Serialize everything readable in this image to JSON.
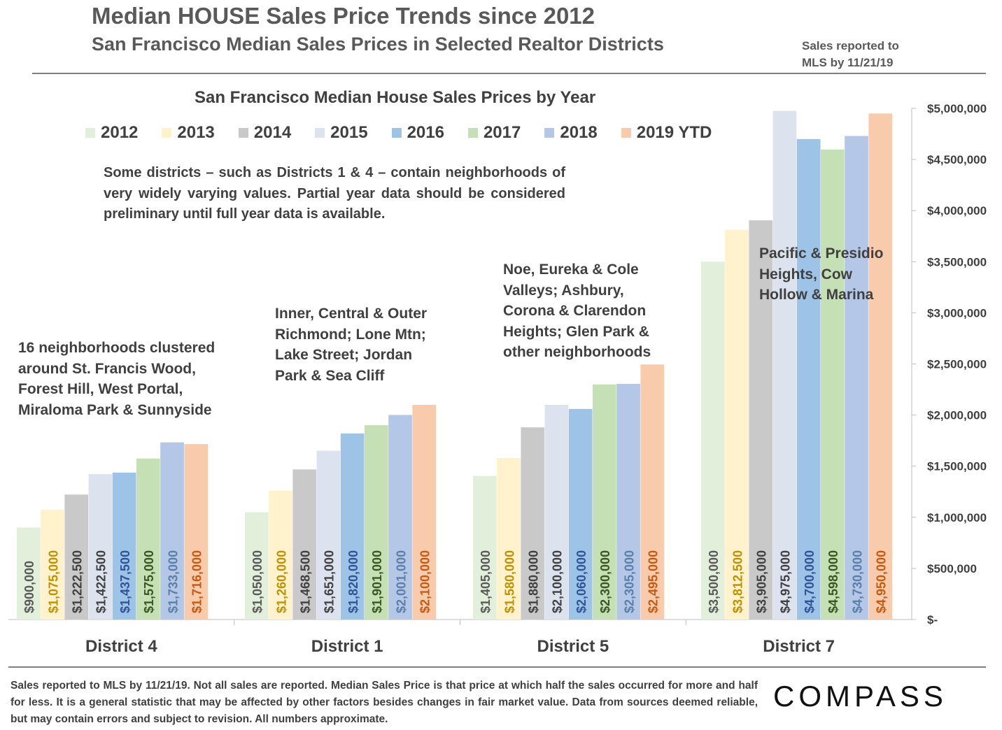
{
  "header": {
    "title": "Median HOUSE Sales Price Trends since 2012",
    "subtitle": "San Francisco Median Sales Prices in Selected Realtor Districts",
    "reported_line1": "Sales reported to",
    "reported_line2": "MLS by 11/21/19"
  },
  "note": "Some districts – such as Districts 1 & 4 – contain neighborhoods of very widely varying values. Partial year data should be considered preliminary until full year data is available.",
  "annotations": {
    "district4": "16 neighborhoods clustered\naround St. Francis Wood,\nForest Hill, West Portal,\nMiraloma Park & Sunnyside",
    "district1": "Inner, Central & Outer\nRichmond; Lone Mtn;\nLake Street; Jordan\nPark & Sea Cliff",
    "district5": "Noe, Eureka & Cole\nValleys; Ashbury,\nCorona & Clarendon\nHeights; Glen Park &\nother neighborhoods",
    "district7": "Pacific & Presidio\nHeights, Cow\nHollow & Marina"
  },
  "footnote": "Sales reported to MLS by 11/21/19. Not all sales are reported. Median Sales Price is that price at which half the sales occurred for more and half for less. It is a general statistic that may be affected by other factors besides changes in fair market value. Data from sources deemed reliable, but may contain errors and subject to revision.  All numbers approximate.",
  "logo": "COMPASS",
  "chart_data": {
    "type": "bar",
    "title": "San Francisco Median House Sales Prices by Year",
    "categories": [
      "District 4",
      "District 1",
      "District 5",
      "District 7"
    ],
    "ylim": [
      0,
      5000000
    ],
    "yticks": [
      0,
      500000,
      1000000,
      1500000,
      2000000,
      2500000,
      3000000,
      3500000,
      4000000,
      4500000,
      5000000
    ],
    "ytick_labels": [
      "$-",
      "$500,000",
      "$1,000,000",
      "$1,500,000",
      "$2,000,000",
      "$2,500,000",
      "$3,000,000",
      "$3,500,000",
      "$4,000,000",
      "$4,500,000",
      "$5,000,000"
    ],
    "legend_position": "top",
    "series": [
      {
        "name": "2012",
        "color": "#e2efda",
        "label_color": "#595959",
        "values": [
          900000,
          1050000,
          1405000,
          3500000
        ],
        "labels": [
          "$900,000",
          "$1,050,000",
          "$1,405,000",
          "$3,500,000"
        ]
      },
      {
        "name": "2013",
        "color": "#fff2cc",
        "label_color": "#bf9000",
        "values": [
          1075000,
          1260000,
          1580000,
          3812500
        ],
        "labels": [
          "$1,075,000",
          "$1,260,000",
          "$1,580,000",
          "$3,812,500"
        ]
      },
      {
        "name": "2014",
        "color": "#c9c9c9",
        "label_color": "#404040",
        "values": [
          1222500,
          1468500,
          1880000,
          3905000
        ],
        "labels": [
          "$1,222,500",
          "$1,468,500",
          "$1,880,000",
          "$3,905,000"
        ]
      },
      {
        "name": "2015",
        "color": "#dde2ef",
        "label_color": "#404040",
        "values": [
          1422500,
          1651000,
          2100000,
          4975000
        ],
        "labels": [
          "$1,422,500",
          "$1,651,000",
          "$2,100,000",
          "$4,975,000"
        ]
      },
      {
        "name": "2016",
        "color": "#9dc3e6",
        "label_color": "#2f5597",
        "values": [
          1437500,
          1820000,
          2060000,
          4700000
        ],
        "labels": [
          "$1,437,500",
          "$1,820,000",
          "$2,060,000",
          "$4,700,000"
        ]
      },
      {
        "name": "2017",
        "color": "#c5e0b4",
        "label_color": "#385723",
        "values": [
          1575000,
          1901000,
          2300000,
          4598000
        ],
        "labels": [
          "$1,575,000",
          "$1,901,000",
          "$2,300,000",
          "$4,598,000"
        ]
      },
      {
        "name": "2018",
        "color": "#b4c7e7",
        "label_color": "#5b7fa8",
        "values": [
          1733000,
          2001000,
          2305000,
          4730000
        ],
        "labels": [
          "$1,733,000",
          "$2,001,000",
          "$2,305,000",
          "$4,730,000"
        ]
      },
      {
        "name": "2019 YTD",
        "color": "#f8cbad",
        "label_color": "#c55a11",
        "values": [
          1716000,
          2100000,
          2495000,
          4950000
        ],
        "labels": [
          "$1,716,000",
          "$2,100,000",
          "$2,495,000",
          "$4,950,000"
        ]
      }
    ]
  }
}
